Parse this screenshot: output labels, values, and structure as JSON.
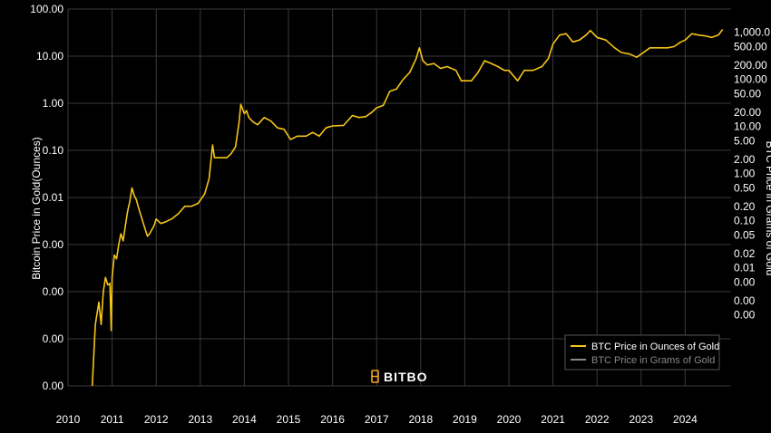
{
  "chart_data": {
    "type": "line",
    "ylabel": "Bitcoin Price in Gold(Ounces)",
    "ylabel_right": "BTC Price in Grams of Gold",
    "yscale": "log",
    "x_ticks": [
      "2010",
      "2011",
      "2012",
      "2013",
      "2014",
      "2015",
      "2016",
      "2017",
      "2018",
      "2019",
      "2020",
      "2021",
      "2022",
      "2023",
      "2024"
    ],
    "left_ticks": [
      "100.00",
      "10.00",
      "1.00",
      "0.10",
      "0.01",
      "0.00",
      "0.00",
      "0.00",
      "0.00"
    ],
    "right_ticks": [
      "1,000.0",
      "500.00",
      "200.00",
      "100.00",
      "50.00",
      "20.00",
      "10.00",
      "5.00",
      "2.00",
      "1.00",
      "0.50",
      "0.20",
      "0.10",
      "0.05",
      "0.02",
      "0.01",
      "0.00",
      "0.00",
      "0.00"
    ],
    "legend_placement": "bottom-right",
    "brand": "BITBO",
    "series": [
      {
        "name": "BTC Price in Ounces of Gold",
        "color": "#f5c518",
        "points": [
          [
            2010.55,
            1e-06
          ],
          [
            2010.62,
            2e-05
          ],
          [
            2010.7,
            6e-05
          ],
          [
            2010.75,
            2e-05
          ],
          [
            2010.8,
            0.0001
          ],
          [
            2010.85,
            0.0002
          ],
          [
            2010.9,
            0.00014
          ],
          [
            2010.95,
            0.00015
          ],
          [
            2010.98,
            1.5e-05
          ],
          [
            2011.0,
            0.0002
          ],
          [
            2011.05,
            0.0006
          ],
          [
            2011.1,
            0.0005
          ],
          [
            2011.15,
            0.001
          ],
          [
            2011.2,
            0.0017
          ],
          [
            2011.25,
            0.0012
          ],
          [
            2011.3,
            0.0025
          ],
          [
            2011.35,
            0.005
          ],
          [
            2011.4,
            0.008
          ],
          [
            2011.45,
            0.016
          ],
          [
            2011.5,
            0.011
          ],
          [
            2011.55,
            0.009
          ],
          [
            2011.6,
            0.006
          ],
          [
            2011.7,
            0.003
          ],
          [
            2011.8,
            0.0015
          ],
          [
            2011.85,
            0.0017
          ],
          [
            2011.95,
            0.0025
          ],
          [
            2012.0,
            0.0035
          ],
          [
            2012.1,
            0.0028
          ],
          [
            2012.2,
            0.003
          ],
          [
            2012.35,
            0.0035
          ],
          [
            2012.5,
            0.0045
          ],
          [
            2012.65,
            0.0065
          ],
          [
            2012.8,
            0.0065
          ],
          [
            2012.95,
            0.0075
          ],
          [
            2013.1,
            0.012
          ],
          [
            2013.2,
            0.025
          ],
          [
            2013.28,
            0.13
          ],
          [
            2013.32,
            0.07
          ],
          [
            2013.4,
            0.07
          ],
          [
            2013.5,
            0.07
          ],
          [
            2013.6,
            0.07
          ],
          [
            2013.7,
            0.085
          ],
          [
            2013.8,
            0.12
          ],
          [
            2013.88,
            0.4
          ],
          [
            2013.92,
            0.95
          ],
          [
            2014.0,
            0.6
          ],
          [
            2014.05,
            0.7
          ],
          [
            2014.1,
            0.5
          ],
          [
            2014.2,
            0.4
          ],
          [
            2014.3,
            0.35
          ],
          [
            2014.45,
            0.5
          ],
          [
            2014.6,
            0.42
          ],
          [
            2014.75,
            0.3
          ],
          [
            2014.9,
            0.28
          ],
          [
            2015.05,
            0.17
          ],
          [
            2015.2,
            0.2
          ],
          [
            2015.4,
            0.2
          ],
          [
            2015.55,
            0.24
          ],
          [
            2015.7,
            0.2
          ],
          [
            2015.85,
            0.3
          ],
          [
            2016.0,
            0.33
          ],
          [
            2016.25,
            0.34
          ],
          [
            2016.45,
            0.55
          ],
          [
            2016.6,
            0.5
          ],
          [
            2016.75,
            0.52
          ],
          [
            2016.9,
            0.65
          ],
          [
            2017.0,
            0.8
          ],
          [
            2017.15,
            0.9
          ],
          [
            2017.3,
            1.8
          ],
          [
            2017.45,
            2.0
          ],
          [
            2017.6,
            3.2
          ],
          [
            2017.75,
            4.5
          ],
          [
            2017.9,
            9.0
          ],
          [
            2017.97,
            15.0
          ],
          [
            2018.05,
            8.0
          ],
          [
            2018.15,
            6.5
          ],
          [
            2018.3,
            7.0
          ],
          [
            2018.45,
            5.5
          ],
          [
            2018.6,
            6.0
          ],
          [
            2018.8,
            5.0
          ],
          [
            2018.92,
            3.0
          ],
          [
            2019.0,
            3.0
          ],
          [
            2019.15,
            3.0
          ],
          [
            2019.3,
            4.5
          ],
          [
            2019.45,
            8.0
          ],
          [
            2019.6,
            7.0
          ],
          [
            2019.75,
            6.0
          ],
          [
            2019.9,
            5.0
          ],
          [
            2020.0,
            5.0
          ],
          [
            2020.2,
            3.0
          ],
          [
            2020.35,
            5.0
          ],
          [
            2020.55,
            5.0
          ],
          [
            2020.75,
            6.0
          ],
          [
            2020.9,
            9.0
          ],
          [
            2021.0,
            18.0
          ],
          [
            2021.15,
            28.0
          ],
          [
            2021.3,
            30.0
          ],
          [
            2021.45,
            20.0
          ],
          [
            2021.6,
            22.0
          ],
          [
            2021.75,
            28.0
          ],
          [
            2021.85,
            35.0
          ],
          [
            2022.0,
            25.0
          ],
          [
            2022.2,
            22.0
          ],
          [
            2022.4,
            15.0
          ],
          [
            2022.55,
            12.0
          ],
          [
            2022.75,
            11.0
          ],
          [
            2022.9,
            9.5
          ],
          [
            2023.0,
            11.0
          ],
          [
            2023.2,
            15.0
          ],
          [
            2023.4,
            15.0
          ],
          [
            2023.6,
            15.0
          ],
          [
            2023.75,
            16.0
          ],
          [
            2023.9,
            20.0
          ],
          [
            2024.0,
            22.0
          ],
          [
            2024.15,
            30.0
          ],
          [
            2024.3,
            28.0
          ],
          [
            2024.45,
            27.0
          ],
          [
            2024.6,
            25.0
          ],
          [
            2024.75,
            28.0
          ],
          [
            2024.85,
            37.0
          ]
        ]
      },
      {
        "name": "BTC Price in Grams of Gold",
        "color": "#888888",
        "points": []
      }
    ]
  }
}
